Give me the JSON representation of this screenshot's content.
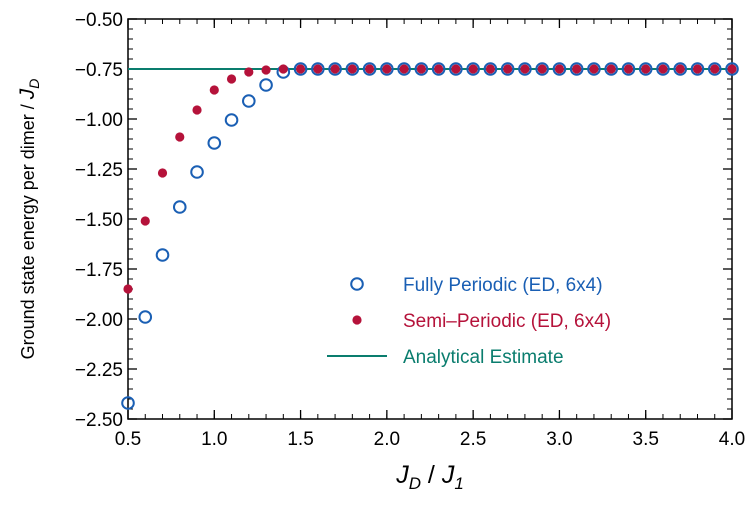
{
  "chart_data": {
    "type": "scatter",
    "xlim": [
      0.5,
      4.0
    ],
    "ylim": [
      -2.5,
      -0.5
    ],
    "xticks": [
      "0.5",
      "1.0",
      "1.5",
      "2.0",
      "2.5",
      "3.0",
      "3.5",
      "4.0"
    ],
    "yticks": [
      "−0.50",
      "−0.75",
      "−1.00",
      "−1.25",
      "−1.50",
      "−1.75",
      "−2.00",
      "−2.25",
      "−2.50"
    ],
    "xlabel": {
      "main": "J",
      "sub1": "D",
      "sep": " / ",
      "main2": "J",
      "sub2": "1"
    },
    "ylabel": {
      "text": "Ground state energy per dimer / ",
      "main": "J",
      "sub": "D"
    },
    "grid": false,
    "legend_position": "lower-right",
    "series": [
      {
        "name": "Fully Periodic (ED, 6x4)",
        "marker": "open-circle",
        "color": "#1a5fb4",
        "x": [
          0.5,
          0.6,
          0.7,
          0.8,
          0.9,
          1.0,
          1.1,
          1.2,
          1.3,
          1.4,
          1.5,
          1.6,
          1.7,
          1.8,
          1.9,
          2.0,
          2.1,
          2.2,
          2.3,
          2.4,
          2.5,
          2.6,
          2.7,
          2.8,
          2.9,
          3.0,
          3.1,
          3.2,
          3.3,
          3.4,
          3.5,
          3.6,
          3.7,
          3.8,
          3.9,
          4.0
        ],
        "y": [
          -2.42,
          -1.99,
          -1.68,
          -1.44,
          -1.265,
          -1.12,
          -1.005,
          -0.91,
          -0.83,
          -0.765,
          -0.75,
          -0.75,
          -0.75,
          -0.75,
          -0.75,
          -0.75,
          -0.75,
          -0.75,
          -0.75,
          -0.75,
          -0.75,
          -0.75,
          -0.75,
          -0.75,
          -0.75,
          -0.75,
          -0.75,
          -0.75,
          -0.75,
          -0.75,
          -0.75,
          -0.75,
          -0.75,
          -0.75,
          -0.75,
          -0.75
        ]
      },
      {
        "name": "Semi–Periodic (ED, 6x4)",
        "marker": "filled-circle",
        "color": "#b5123a",
        "x": [
          0.5,
          0.6,
          0.7,
          0.8,
          0.9,
          1.0,
          1.1,
          1.2,
          1.3,
          1.4,
          1.5,
          1.6,
          1.7,
          1.8,
          1.9,
          2.0,
          2.1,
          2.2,
          2.3,
          2.4,
          2.5,
          2.6,
          2.7,
          2.8,
          2.9,
          3.0,
          3.1,
          3.2,
          3.3,
          3.4,
          3.5,
          3.6,
          3.7,
          3.8,
          3.9,
          4.0
        ],
        "y": [
          -1.85,
          -1.51,
          -1.27,
          -1.09,
          -0.955,
          -0.855,
          -0.8,
          -0.765,
          -0.755,
          -0.75,
          -0.75,
          -0.75,
          -0.75,
          -0.75,
          -0.75,
          -0.75,
          -0.75,
          -0.75,
          -0.75,
          -0.75,
          -0.75,
          -0.75,
          -0.75,
          -0.75,
          -0.75,
          -0.75,
          -0.75,
          -0.75,
          -0.75,
          -0.75,
          -0.75,
          -0.75,
          -0.75,
          -0.75,
          -0.75,
          -0.75
        ]
      },
      {
        "name": "Analytical Estimate",
        "marker": "line",
        "color": "#0a7d6e",
        "x": [
          0.5,
          4.0
        ],
        "y": [
          -0.75,
          -0.75
        ]
      }
    ]
  }
}
